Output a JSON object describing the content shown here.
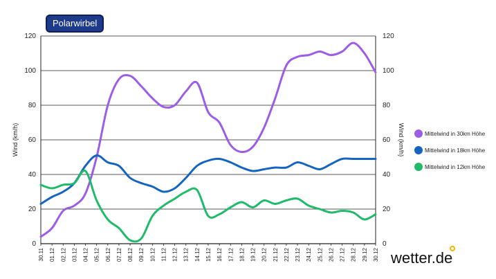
{
  "badge": "Polarwirbel",
  "brand": "wetter.de",
  "colors": {
    "purple": "#9b5de5",
    "blue": "#1565c0",
    "green": "#1fba6a",
    "badge": "#1e3a8a",
    "brand_dot": "#f4b400"
  },
  "chart_data": {
    "type": "line",
    "title": "Polarwirbel",
    "ylabel": "Wind (km/h)",
    "ylabel_right": "Wind (km/h)",
    "ylim": [
      0,
      120
    ],
    "yticks": [
      0,
      20,
      40,
      60,
      80,
      100,
      120
    ],
    "grid": true,
    "legend_position": "right",
    "categories": [
      "30.11",
      "01.12",
      "02.12",
      "03.12",
      "04.12",
      "05.12",
      "06.12",
      "07.12",
      "08.12",
      "09.12",
      "10.12",
      "11.12",
      "12.12",
      "13.12",
      "14.12",
      "15.12",
      "16.12",
      "17.12",
      "18.12",
      "19.12",
      "20.12",
      "21.12",
      "22.12",
      "23.12",
      "24.12",
      "25.12",
      "26.12",
      "27.12",
      "28.12",
      "29.12",
      "30.12"
    ],
    "series": [
      {
        "name": "Mittelwind in 30km Höhe",
        "color": "#9b5de5",
        "values": [
          4,
          9,
          19,
          22,
          29,
          50,
          80,
          95,
          97,
          91,
          84,
          79,
          80,
          88,
          93,
          76,
          70,
          57,
          53,
          56,
          67,
          84,
          103,
          108,
          109,
          111,
          109,
          111,
          116,
          110,
          99
        ]
      },
      {
        "name": "Mittelwind in 18km Höhe",
        "color": "#1565c0",
        "values": [
          23,
          27,
          30,
          35,
          45,
          51,
          47,
          45,
          38,
          35,
          33,
          30,
          32,
          38,
          45,
          48,
          49,
          47,
          44,
          42,
          43,
          44,
          44,
          47,
          45,
          43,
          46,
          49,
          49,
          49,
          49
        ]
      },
      {
        "name": "Mittelwind in 12km Höhe",
        "color": "#1fba6a",
        "values": [
          34,
          32,
          34,
          35,
          42,
          25,
          14,
          9,
          2,
          3,
          16,
          22,
          26,
          30,
          31,
          16,
          17,
          21,
          24,
          21,
          25,
          23,
          25,
          26,
          22,
          20,
          18,
          19,
          18,
          14,
          17
        ]
      }
    ]
  }
}
